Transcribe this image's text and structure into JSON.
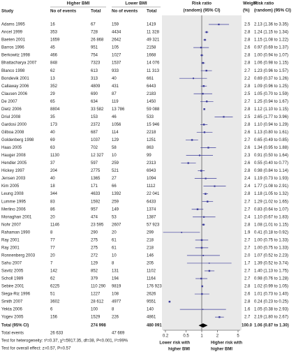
{
  "chart_data": {
    "type": "forest",
    "header": {
      "study": "Study",
      "group1": "Higher BMI",
      "group2": "Lower BMI",
      "events": "No of events",
      "total": "Total",
      "plot": [
        "Risk ratio",
        "(random) (95% CI)"
      ],
      "weight": [
        "Weight",
        "(%)"
      ],
      "rr": [
        "Risk ratio",
        "(random) (95% CI)"
      ]
    },
    "rows": [
      {
        "study": "Adams 1995",
        "e1": "16",
        "n1": "67",
        "e2": "159",
        "n2": "1419",
        "weight": 2.5,
        "rr": 2.13,
        "lo": 1.36,
        "hi": 3.35,
        "rr_label": "2.13 (1.36 to 3.35)"
      },
      {
        "study": "Ancel 1999",
        "e1": "353",
        "n1": "728",
        "e2": "4434",
        "n2": "11 328",
        "weight": 2.8,
        "rr": 1.24,
        "lo": 1.15,
        "hi": 1.34,
        "rr_label": "1.24 (1.15 to 1.34)"
      },
      {
        "study": "Baeten 2001",
        "e1": "1659",
        "n1": "26 868",
        "e2": "2642",
        "n2": "49 321",
        "weight": 2.8,
        "rr": 1.15,
        "lo": 1.08,
        "hi": 1.22,
        "rr_label": "1.15 (1.08 to 1.22)"
      },
      {
        "study": "Barros 1996",
        "e1": "45",
        "n1": "951",
        "e2": "105",
        "n2": "2158",
        "weight": 2.6,
        "rr": 0.97,
        "lo": 0.69,
        "hi": 1.37,
        "rr_label": "0.97 (0.69 to 1.37)"
      },
      {
        "study": "Berkowitz 1998",
        "e1": "466",
        "n1": "754",
        "e2": "1027",
        "n2": "1668",
        "weight": 2.8,
        "rr": 1.0,
        "lo": 0.94,
        "hi": 1.07,
        "rr_label": "1.00 (0.94 to 1.07)"
      },
      {
        "study": "Bhattacharya 2007",
        "e1": "848",
        "n1": "7323",
        "e2": "1537",
        "n2": "14 076",
        "weight": 2.8,
        "rr": 1.06,
        "lo": 0.98,
        "hi": 1.15,
        "rr_label": "1.06 (0.98 to 1.15)"
      },
      {
        "study": "Blanco 1998",
        "e1": "62",
        "n1": "613",
        "e2": "933",
        "n2": "11 313",
        "weight": 2.7,
        "rr": 1.23,
        "lo": 0.96,
        "hi": 1.57,
        "rr_label": "1.23 (0.96 to 1.57)"
      },
      {
        "study": "Bondevik 2001",
        "e1": "13",
        "n1": "313",
        "e2": "40",
        "n2": "661",
        "weight": 2.2,
        "rr": 0.69,
        "lo": 0.37,
        "hi": 1.26,
        "rr_label": "0.69 (0.37 to 1.26)"
      },
      {
        "study": "Callaway 2006",
        "e1": "352",
        "n1": "4809",
        "e2": "431",
        "n2": "6443",
        "weight": 2.8,
        "rr": 1.09,
        "lo": 0.96,
        "hi": 1.25,
        "rr_label": "1.09 (0.96 to 1.25)"
      },
      {
        "study": "Clausen 2006",
        "e1": "29",
        "n1": "690",
        "e2": "87",
        "n2": "2183",
        "weight": 2.5,
        "rr": 1.05,
        "lo": 0.7,
        "hi": 1.59,
        "rr_label": "1.05 (0.70 to 1.59)"
      },
      {
        "study": "De 2007",
        "e1": "65",
        "n1": "634",
        "e2": "119",
        "n2": "1450",
        "weight": 2.7,
        "rr": 1.25,
        "lo": 0.94,
        "hi": 1.67,
        "rr_label": "1.25 (0.94 to 1.67)"
      },
      {
        "study": "Dietz 2006",
        "e1": "8804",
        "n1": "33 582",
        "e2": "13 786",
        "n2": "59 088",
        "weight": 2.8,
        "rr": 1.12,
        "lo": 1.1,
        "hi": 1.15,
        "rr_label": "1.12 (1.10 to 1.15)"
      },
      {
        "study": "Driul 2008",
        "e1": "35",
        "n1": "153",
        "e2": "46",
        "n2": "533",
        "weight": 2.5,
        "rr": 2.65,
        "lo": 1.77,
        "hi": 3.96,
        "rr_label": "2.65 (1.77 to 3.96)"
      },
      {
        "study": "Gardosi 2000",
        "e1": "173",
        "n1": "2372",
        "e2": "1056",
        "n2": "15 946",
        "weight": 2.8,
        "rr": 1.1,
        "lo": 0.94,
        "hi": 1.29,
        "rr_label": "1.10 (0.94 to 1.29)"
      },
      {
        "study": "Gilboa 2008",
        "e1": "40",
        "n1": "687",
        "e2": "114",
        "n2": "2218",
        "weight": 2.6,
        "rr": 1.13,
        "lo": 0.8,
        "hi": 1.61,
        "rr_label": "1.13 (0.80 to 1.61)"
      },
      {
        "study": "Goldenberg 1998",
        "e1": "69",
        "n1": "1037",
        "e2": "129",
        "n2": "1251",
        "weight": 2.7,
        "rr": 0.65,
        "lo": 0.49,
        "hi": 0.85,
        "rr_label": "0.65 (0.49 to 0.85)"
      },
      {
        "study": "Haas 2005",
        "e1": "63",
        "n1": "702",
        "e2": "58",
        "n2": "863",
        "weight": 2.6,
        "rr": 1.34,
        "lo": 0.95,
        "hi": 1.88,
        "rr_label": "1.34 (0.95 to 1.88)"
      },
      {
        "study": "Hauger 2008",
        "e1": "1130",
        "n1": "12 327",
        "e2": "10",
        "n2": "99",
        "weight": 2.3,
        "rr": 0.91,
        "lo": 0.5,
        "hi": 1.64,
        "rr_label": "0.91 (0.50 to 1.64)"
      },
      {
        "study": "Hendler 2005",
        "e1": "37",
        "n1": "597",
        "e2": "259",
        "n2": "2313",
        "weight": 2.6,
        "rr": 0.55,
        "lo": 0.4,
        "hi": 0.77,
        "rr_label": "0.55 (0.40 to 0.77)"
      },
      {
        "study": "Hickey 1997",
        "e1": "204",
        "n1": "2775",
        "e2": "521",
        "n2": "6943",
        "weight": 2.8,
        "rr": 0.98,
        "lo": 0.84,
        "hi": 1.14,
        "rr_label": "0.98 (0.84 to 1.14)"
      },
      {
        "study": "Jensen 2003",
        "e1": "40",
        "n1": "1365",
        "e2": "27",
        "n2": "1094",
        "weight": 2.4,
        "rr": 1.19,
        "lo": 0.73,
        "hi": 1.93,
        "rr_label": "1.19 (0.73 to 1.93)"
      },
      {
        "study": "Kim 2005",
        "e1": "18",
        "n1": "171",
        "e2": "66",
        "n2": "1112",
        "weight": 2.4,
        "rr": 1.77,
        "lo": 1.08,
        "hi": 2.91,
        "rr_label": "1.77 (1.08 to 2.91)"
      },
      {
        "study": "Leung 2008",
        "e1": "344",
        "n1": "4633",
        "e2": "1392",
        "n2": "22 041",
        "weight": 2.8,
        "rr": 1.18,
        "lo": 1.05,
        "hi": 1.32,
        "rr_label": "1.18 (1.05 to 1.32)"
      },
      {
        "study": "Lumme 1995",
        "e1": "83",
        "n1": "1592",
        "e2": "259",
        "n2": "6433",
        "weight": 2.7,
        "rr": 1.29,
        "lo": 1.02,
        "hi": 1.65,
        "rr_label": "1.29 (1.02 to 1.65)"
      },
      {
        "study": "Merlino 2006",
        "e1": "86",
        "n1": "957",
        "e2": "149",
        "n2": "1374",
        "weight": 2.7,
        "rr": 0.83,
        "lo": 0.64,
        "hi": 1.07,
        "rr_label": "0.83 (0.64 to 1.07)"
      },
      {
        "study": "Monaghan 2001",
        "e1": "20",
        "n1": "474",
        "e2": "53",
        "n2": "1387",
        "weight": 2.4,
        "rr": 1.1,
        "lo": 0.67,
        "hi": 1.83,
        "rr_label": "1.10 (0.67 to 1.83)"
      },
      {
        "study": "Nohr 2007",
        "e1": "1146",
        "n1": "23 595",
        "e2": "2607",
        "n2": "57 923",
        "weight": 2.8,
        "rr": 1.08,
        "lo": 1.01,
        "hi": 1.15,
        "rr_label": "1.08 (1.01 to 1.15)"
      },
      {
        "study": "Rahaman 1990",
        "e1": "8",
        "n1": "290",
        "e2": "20",
        "n2": "299",
        "weight": 1.9,
        "rr": 0.41,
        "lo": 0.18,
        "hi": 0.92,
        "rr_label": "0.41 (0.18 to 0.92)"
      },
      {
        "study": "Ray 2001",
        "e1": "77",
        "n1": "275",
        "e2": "61",
        "n2": "218",
        "weight": 2.7,
        "rr": 1.0,
        "lo": 0.75,
        "hi": 1.33,
        "rr_label": "1.00 (0.75 to 1.33)"
      },
      {
        "study": "Ray 2001",
        "e1": "77",
        "n1": "275",
        "e2": "61",
        "n2": "218",
        "weight": 2.7,
        "rr": 1.0,
        "lo": 0.75,
        "hi": 1.33,
        "rr_label": "1.00 (0.75 to 1.33)"
      },
      {
        "study": "Ronnenberg 2003",
        "e1": "20",
        "n1": "272",
        "e2": "10",
        "n2": "146",
        "weight": 2.0,
        "weight_label": "2.0",
        "rr": 1.07,
        "lo": 0.52,
        "hi": 2.23,
        "rr_label": "1.07 (0.52 to 2.23)"
      },
      {
        "study": "Sahu 2007",
        "e1": "7",
        "n1": "129",
        "e2": "8",
        "n2": "205",
        "weight": 1.7,
        "rr": 1.39,
        "lo": 0.52,
        "hi": 3.74,
        "rr_label": "1.39 (0.52 to 3.74)"
      },
      {
        "study": "Savitz 2005",
        "e1": "142",
        "n1": "852",
        "e2": "131",
        "n2": "1102",
        "weight": 2.7,
        "rr": 1.4,
        "lo": 1.13,
        "hi": 1.75,
        "rr_label": "1.40 (1.13 to 1.75)"
      },
      {
        "study": "Scholl 1989",
        "e1": "62",
        "n1": "379",
        "e2": "194",
        "n2": "1164",
        "weight": 2.7,
        "rr": 0.98,
        "lo": 0.76,
        "hi": 1.28,
        "rr_label": "0.98 (0.76 to 1.28)"
      },
      {
        "study": "Sebire 2001",
        "e1": "6225",
        "n1": "110 290",
        "e2": "9819",
        "n2": "176 923",
        "weight": 2.8,
        "rr": 1.02,
        "lo": 0.99,
        "hi": 1.05,
        "rr_label": "1.02 (0.99 to 1.05)"
      },
      {
        "study": "Siega-Riz 1996",
        "e1": "51",
        "n1": "1227",
        "e2": "108",
        "n2": "2626",
        "weight": 2.6,
        "rr": 1.01,
        "lo": 0.73,
        "hi": 1.4,
        "rr_label": "1.01 (0.73 to 1.40)"
      },
      {
        "study": "Smith 2007",
        "e1": "3602",
        "n1": "28 612",
        "e2": "4977",
        "n2": "9551",
        "weight": 2.8,
        "rr": 0.24,
        "lo": 0.23,
        "hi": 0.25,
        "rr_label": "0.24 (0.23 to 0.25)"
      },
      {
        "study": "Yekta 2006",
        "e1": "6",
        "n1": "100",
        "e2": "8",
        "n2": "140",
        "weight": 1.6,
        "rr": 1.05,
        "lo": 0.38,
        "hi": 2.93,
        "rr_label": "1.05 (0.38 to 2.93)"
      },
      {
        "study": "Yogev 2005",
        "e1": "156",
        "n1": "1529",
        "e2": "226",
        "n2": "4861",
        "weight": 2.7,
        "rr": 2.19,
        "lo": 1.8,
        "hi": 2.67,
        "rr_label": "2.19 (1.80 to 2.67)"
      }
    ],
    "total": {
      "study": "Total (95% CI)",
      "n1": "274 998",
      "n2": "480 091",
      "weight": 100.0,
      "weight_label": "100.0",
      "rr": 1.06,
      "lo": 0.87,
      "hi": 1.3,
      "rr_label": "1.06 (0.87 to 1.30)"
    },
    "total_events": {
      "label": "Total events",
      "e1": "26 633",
      "e2": "47 669"
    },
    "heterogeneity": "Test for heterogeneity: τ²=0.37, χ²=5917.35, df=38, P<0.001, I²=99%",
    "overall_effect": "Test for overall effect: z=0.57, P=0.57",
    "log_x": true,
    "xlim": [
      0.2,
      5
    ],
    "xticks": [
      0.2,
      0.5,
      1,
      2,
      5
    ],
    "left_label": [
      "Lower risk with",
      "higher BMI"
    ],
    "right_label": [
      "Higher risk with",
      "higher BMI"
    ],
    "color": "#3b3b9a"
  }
}
